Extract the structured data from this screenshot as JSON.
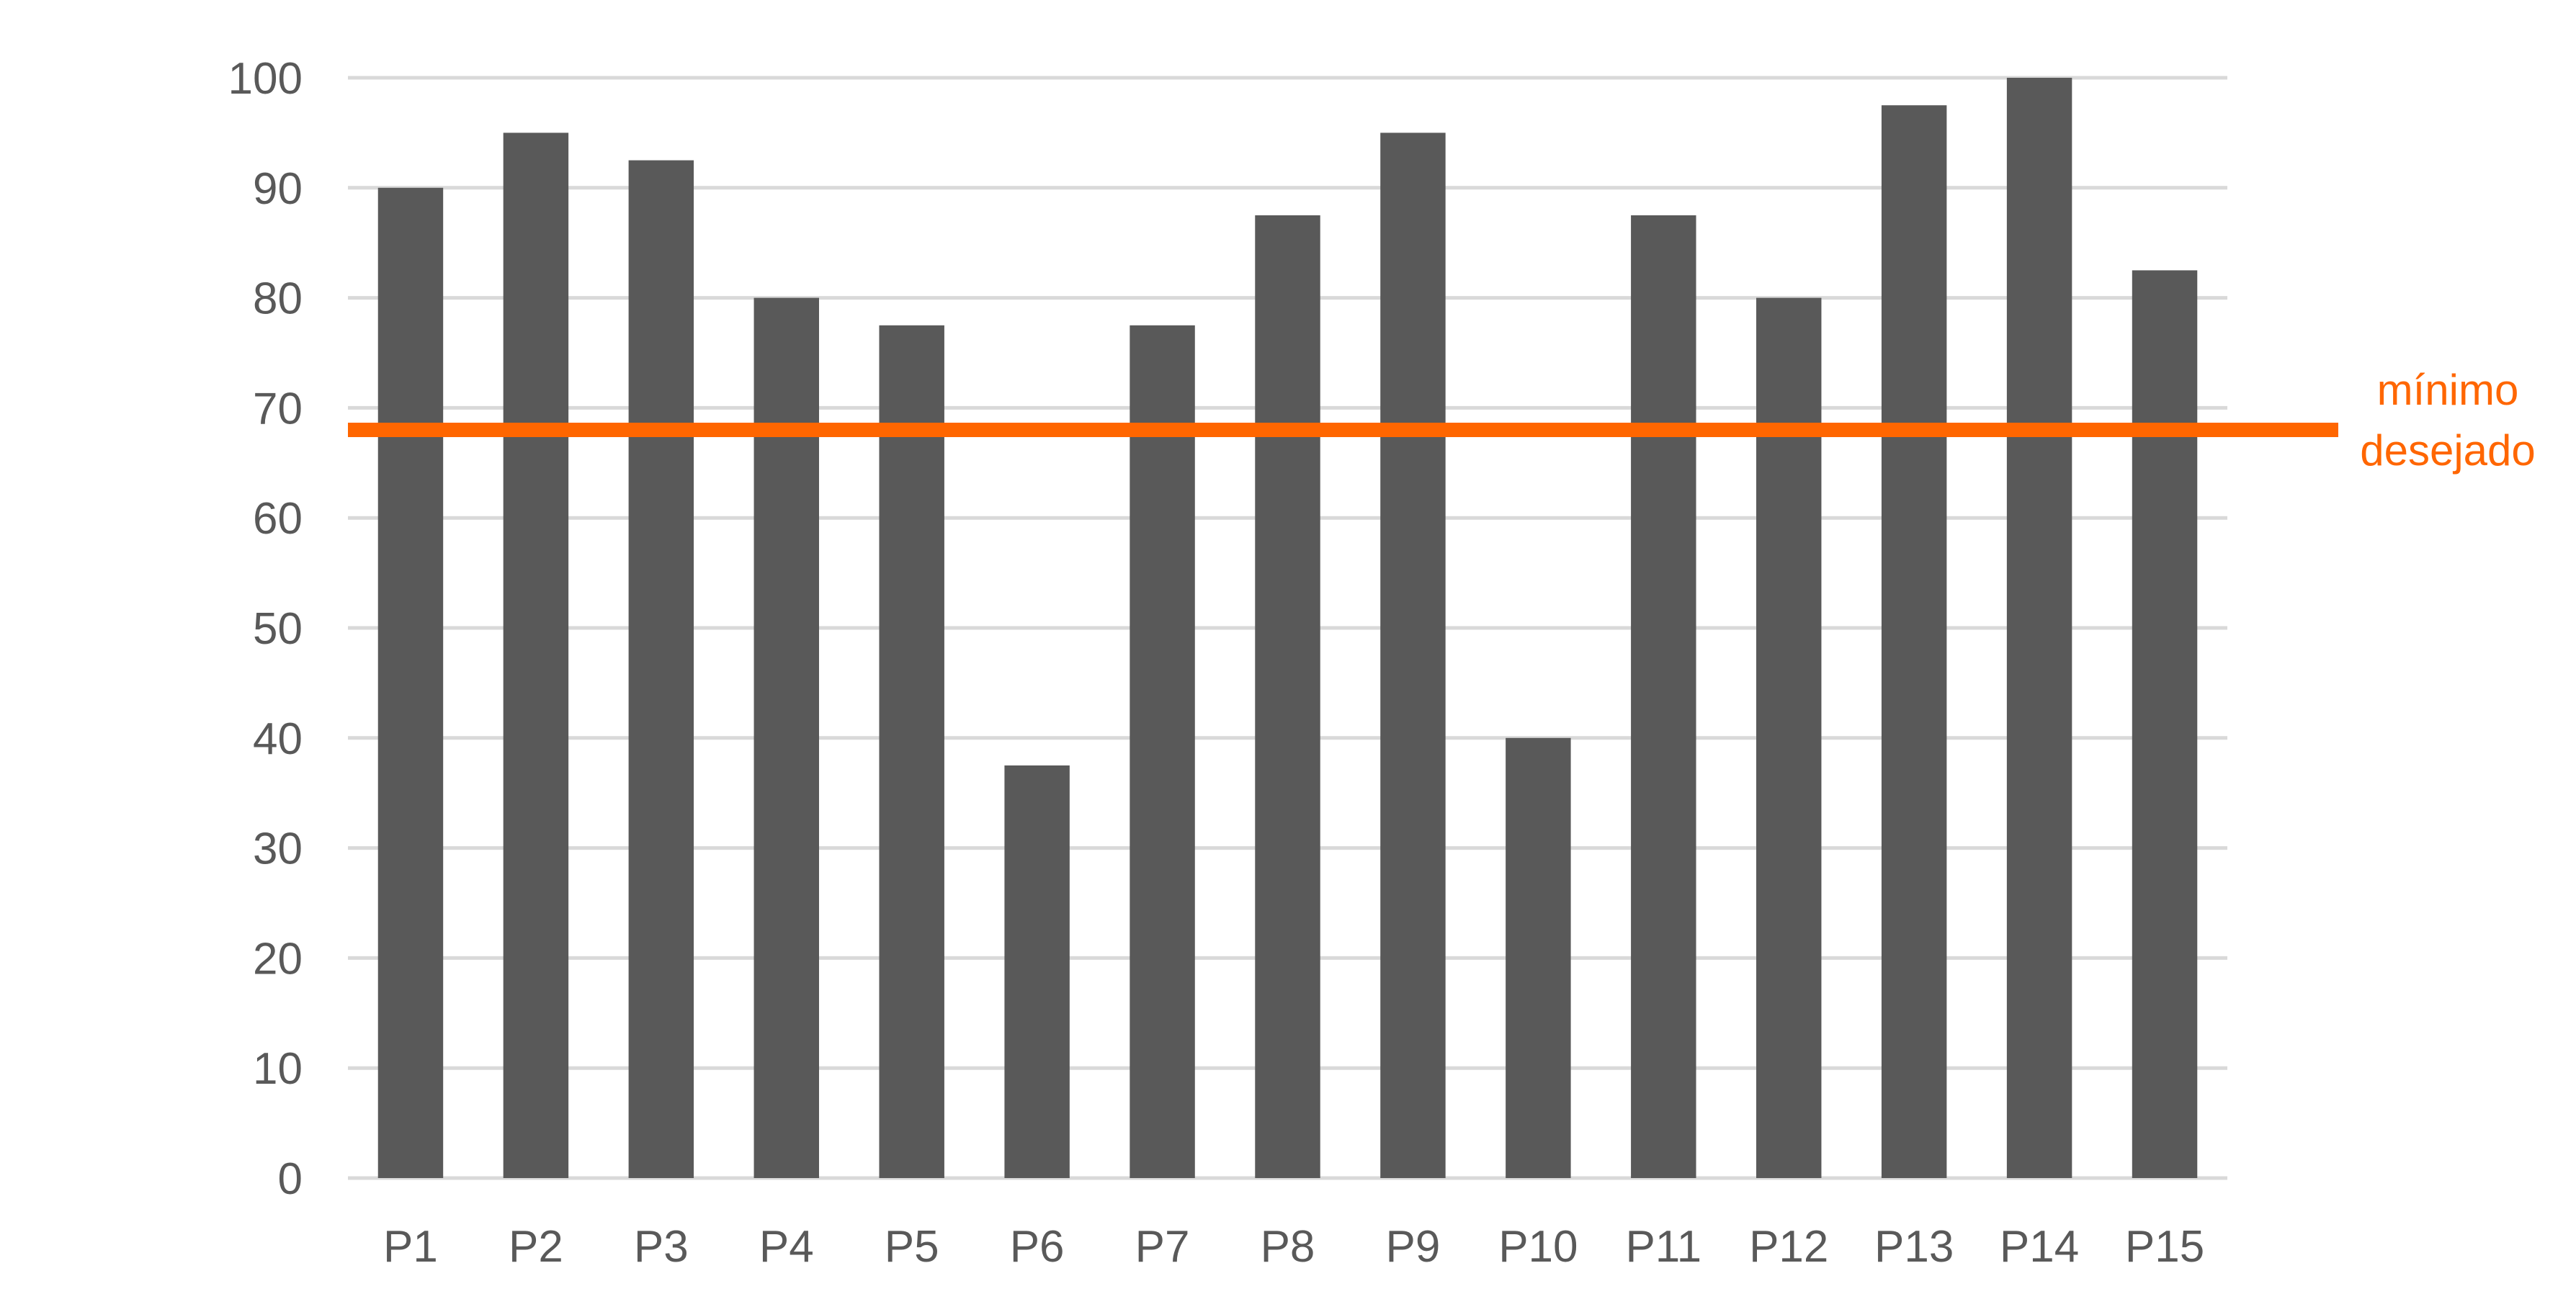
{
  "chart_data": {
    "type": "bar",
    "categories": [
      "P1",
      "P2",
      "P3",
      "P4",
      "P5",
      "P6",
      "P7",
      "P8",
      "P9",
      "P10",
      "P11",
      "P12",
      "P13",
      "P14",
      "P15"
    ],
    "values": [
      90,
      95,
      92.5,
      80,
      77.5,
      37.5,
      77.5,
      87.5,
      95,
      40,
      87.5,
      80,
      97.5,
      100,
      82.5
    ],
    "ylim": [
      0,
      100
    ],
    "yticks": [
      "0",
      "10",
      "20",
      "30",
      "40",
      "50",
      "60",
      "70",
      "80",
      "90",
      "100"
    ],
    "grid": true,
    "title": "",
    "xlabel": "",
    "ylabel": "",
    "reference_line": {
      "value": 68,
      "label_line1": "mínimo",
      "label_line2": "desejado",
      "color": "#ff6600"
    },
    "bar_color": "#595959",
    "grid_color": "#d9d9d9",
    "tick_label_color": "#595959"
  }
}
